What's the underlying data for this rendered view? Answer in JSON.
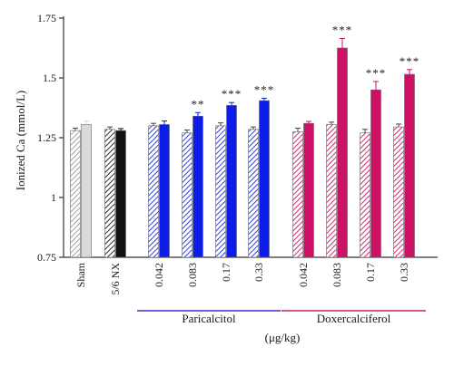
{
  "chart_data": {
    "type": "bar",
    "ylabel": "Ionized Ca (mmol/L)",
    "unit_label": "(μg/kg)",
    "ylim": [
      0.75,
      1.75
    ],
    "yticks": [
      "0.75",
      "1",
      "1.25",
      "1.5",
      "1.75"
    ],
    "groups": [
      {
        "label": "Sham",
        "values": [
          1.28,
          1.305
        ],
        "errors": [
          0.01,
          0.015
        ],
        "fills": [
          "hatch-gray",
          "#d9d9d9"
        ],
        "sig": ""
      },
      {
        "label": "5/6 NX",
        "values": [
          1.285,
          1.28
        ],
        "errors": [
          0.01,
          0.008
        ],
        "fills": [
          "hatch-black",
          "#111111"
        ],
        "sig": ""
      },
      {
        "label": "0.042",
        "values": [
          1.3,
          1.305
        ],
        "errors": [
          0.01,
          0.015
        ],
        "fills": [
          "hatch-blue",
          "#0b1de6"
        ],
        "sig": ""
      },
      {
        "label": "0.083",
        "values": [
          1.27,
          1.34
        ],
        "errors": [
          0.012,
          0.015
        ],
        "fills": [
          "hatch-blue",
          "#0b1de6"
        ],
        "sig": "**"
      },
      {
        "label": "0.17",
        "values": [
          1.3,
          1.385
        ],
        "errors": [
          0.012,
          0.012
        ],
        "fills": [
          "hatch-blue",
          "#0b1de6"
        ],
        "sig": "***"
      },
      {
        "label": "0.33",
        "values": [
          1.285,
          1.405
        ],
        "errors": [
          0.01,
          0.01
        ],
        "fills": [
          "hatch-blue",
          "#0b1de6"
        ],
        "sig": "***"
      },
      {
        "label": "0.042",
        "values": [
          1.275,
          1.31
        ],
        "errors": [
          0.015,
          0.008
        ],
        "fills": [
          "hatch-pink",
          "#cc1166"
        ],
        "sig": ""
      },
      {
        "label": "0.083",
        "values": [
          1.305,
          1.625
        ],
        "errors": [
          0.01,
          0.04
        ],
        "fills": [
          "hatch-pink",
          "#cc1166"
        ],
        "sig": "***"
      },
      {
        "label": "0.17",
        "values": [
          1.27,
          1.45
        ],
        "errors": [
          0.015,
          0.035
        ],
        "fills": [
          "hatch-pink",
          "#cc1166"
        ],
        "sig": "***"
      },
      {
        "label": "0.33",
        "values": [
          1.295,
          1.515
        ],
        "errors": [
          0.012,
          0.02
        ],
        "fills": [
          "hatch-pink",
          "#cc1166"
        ],
        "sig": "***"
      }
    ],
    "treatments": [
      {
        "label": "Paricalcitol",
        "color": "#3333cc",
        "from_group": 2,
        "to_group": 5
      },
      {
        "label": "Doxercalciferol",
        "color": "#cc2255",
        "from_group": 6,
        "to_group": 9
      }
    ]
  }
}
